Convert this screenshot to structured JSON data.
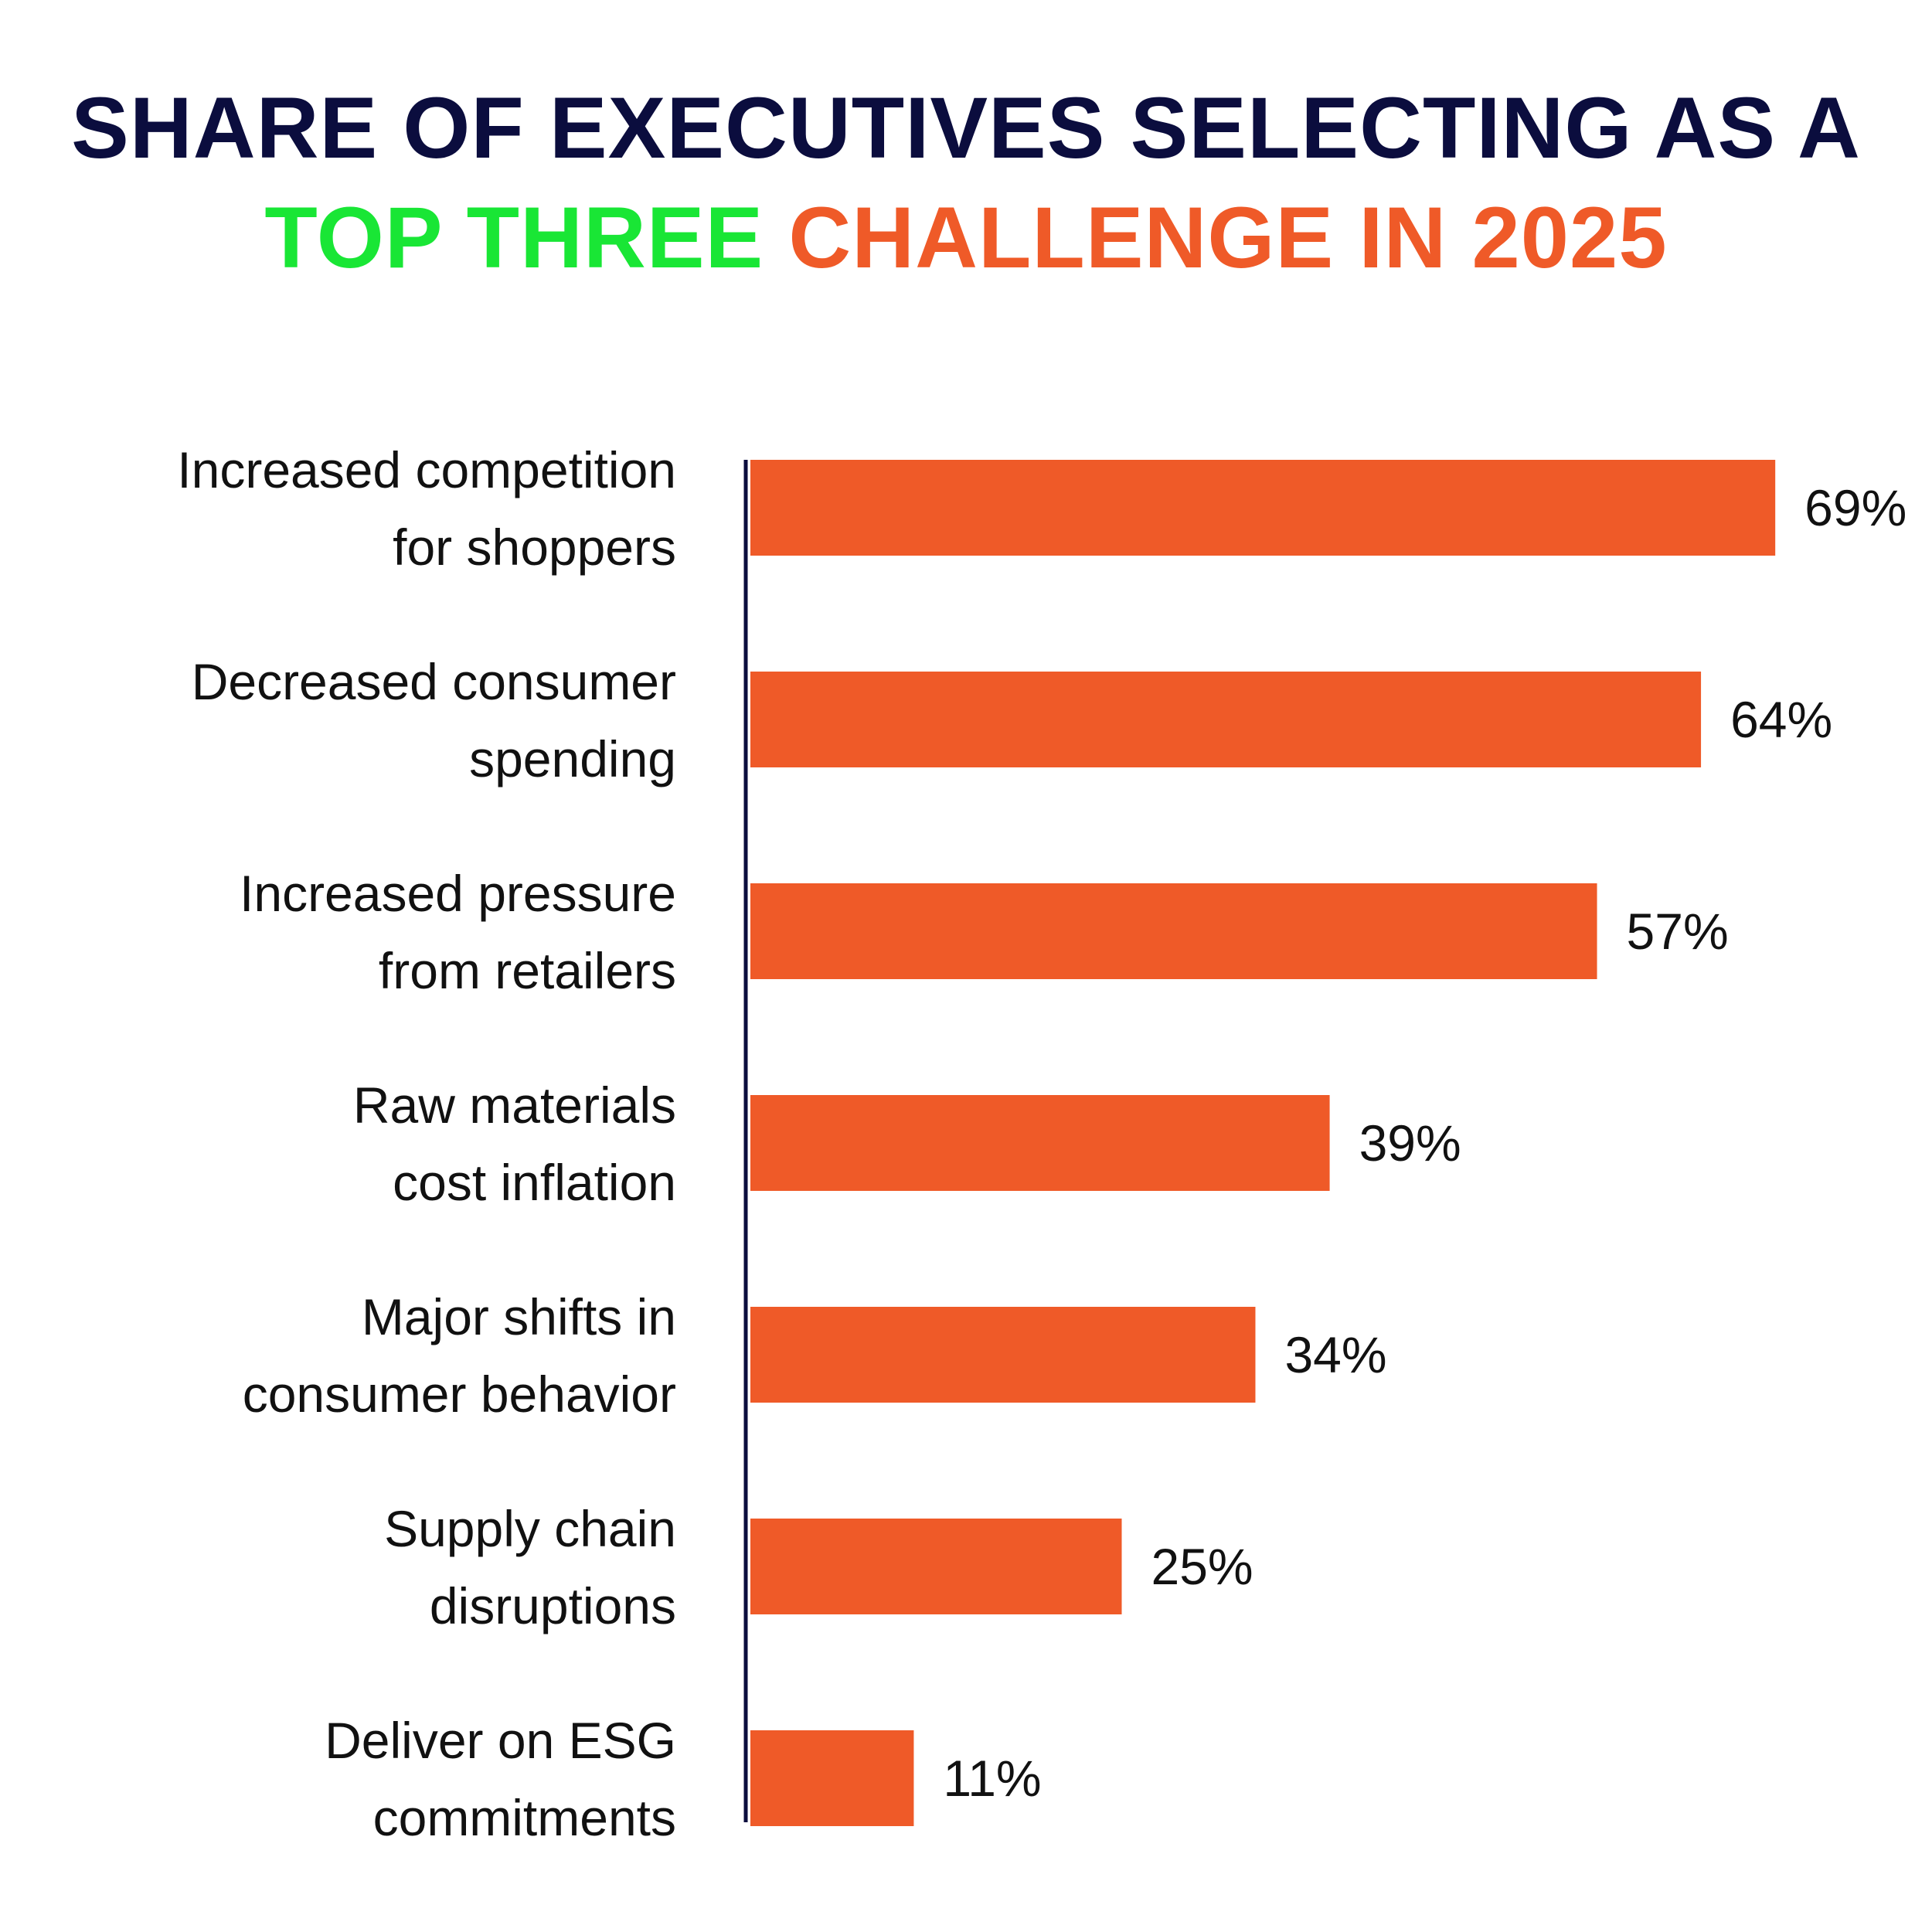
{
  "title": {
    "line1": "SHARE OF EXECUTIVES SELECTING AS A",
    "line2_part1": "TOP THREE",
    "line2_part2": "CHALLENGE IN 2025"
  },
  "colors": {
    "title_dark": "#0b0d3e",
    "title_green": "#19e635",
    "accent_orange": "#ef5a28",
    "axis": "#0b0d3e",
    "text": "#111111"
  },
  "chart_data": {
    "type": "bar",
    "orientation": "horizontal",
    "title": "SHARE OF EXECUTIVES SELECTING AS A TOP THREE CHALLENGE IN 2025",
    "categories": [
      [
        "Increased competition",
        "for shoppers"
      ],
      [
        "Decreased consumer",
        "spending"
      ],
      [
        "Increased pressure",
        "from retailers"
      ],
      [
        "Raw materials",
        "cost inflation"
      ],
      [
        "Major shifts in",
        "consumer behavior"
      ],
      [
        "Supply chain",
        "disruptions"
      ],
      [
        "Deliver on ESG",
        "commitments"
      ]
    ],
    "values": [
      69,
      64,
      57,
      39,
      34,
      25,
      11
    ],
    "value_labels": [
      "69%",
      "64%",
      "57%",
      "39%",
      "34%",
      "25%",
      "11%"
    ],
    "xlim": [
      0,
      100
    ],
    "grid": false,
    "legend": "none"
  }
}
